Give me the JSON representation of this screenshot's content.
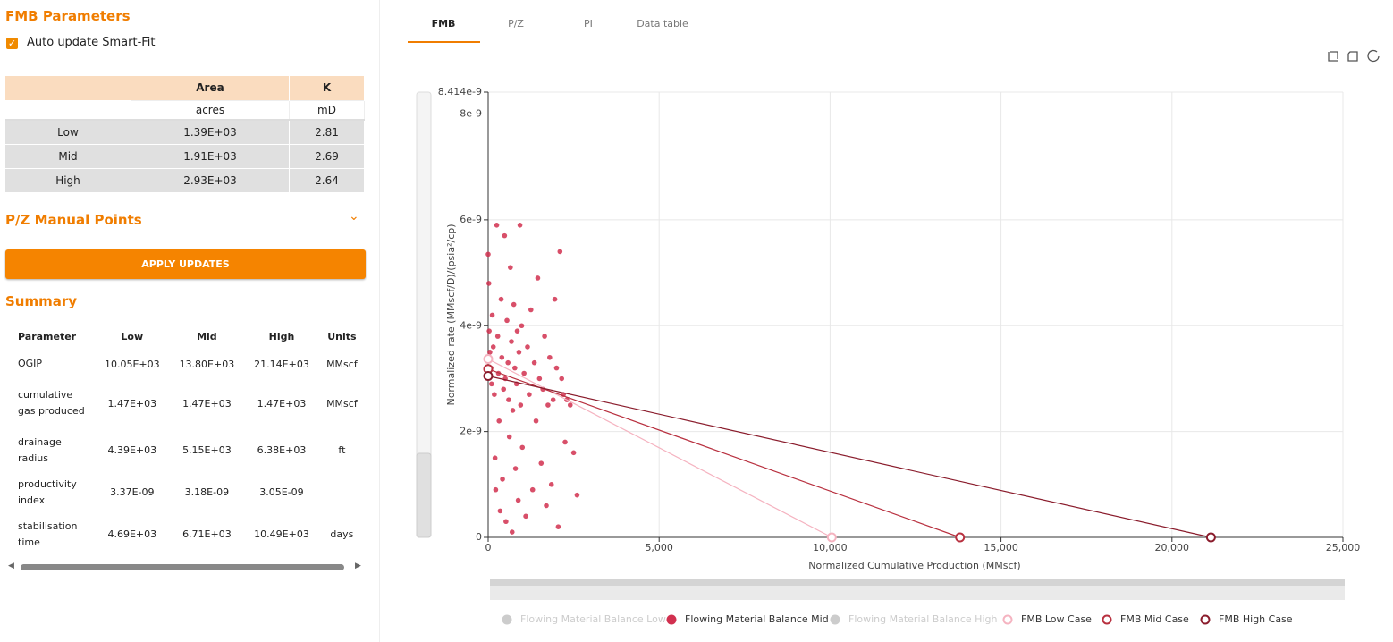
{
  "panel": {
    "title": "FMB Parameters",
    "checkbox_label": "Auto update Smart-Fit",
    "params_table": {
      "columns": [
        "Area",
        "K"
      ],
      "units": [
        "acres",
        "mD"
      ],
      "rows": [
        [
          "Low",
          "1.39E+03",
          "2.81"
        ],
        [
          "Mid",
          "1.91E+03",
          "2.69"
        ],
        [
          "High",
          "2.93E+03",
          "2.64"
        ]
      ]
    },
    "pz_title": "P/Z Manual Points",
    "button": "APPLY UPDATES",
    "summary_title": "Summary",
    "summary_table": {
      "header": [
        "Parameter",
        "Low",
        "Mid",
        "High",
        "Units"
      ],
      "rows": [
        [
          "OGIP",
          "10.05E+03",
          "13.80E+03",
          "21.14E+03",
          "MMscf"
        ],
        [
          "cumulative gas produced",
          "1.47E+03",
          "1.47E+03",
          "1.47E+03",
          "MMscf"
        ],
        [
          "drainage radius",
          "4.39E+03",
          "5.15E+03",
          "6.38E+03",
          "ft"
        ],
        [
          "productivity index",
          "3.37E-09",
          "3.18E-09",
          "3.05E-09",
          null
        ],
        [
          "stabilisation time",
          "4.69E+03",
          "6.71E+03",
          "10.49E+03",
          "days"
        ]
      ]
    }
  },
  "tabs": [
    "FMB",
    "P/Z",
    "PI",
    "Data table"
  ],
  "chart_data": {
    "type": "scatter",
    "x_label": "Normalized Cumulative Production (MMscf)",
    "y_label": "Normalized rate (MMscf/D)/(psia²/cp)",
    "xlim": [
      0,
      25000
    ],
    "xticks": [
      0,
      {
        "value": 5000,
        "label": "5,000"
      },
      {
        "value": 10000,
        "label": "10,000"
      },
      {
        "value": 15000,
        "label": "15,000"
      },
      {
        "value": 20000,
        "label": "20,000"
      },
      {
        "value": 25000,
        "label": "25,000"
      }
    ],
    "ylim": [
      0,
      8.414e-09
    ],
    "yticks": [
      0,
      2e-09,
      4e-09,
      6e-09,
      8e-09,
      8.414e-09
    ],
    "grid": true,
    "series": [
      {
        "name": "Flowing Material Balance Low",
        "type": "scatter",
        "color": "#cccccc",
        "hidden": true,
        "x": [],
        "values": []
      },
      {
        "name": "Flowing Material Balance Mid",
        "type": "scatter",
        "color": "#d1304f",
        "hidden": false,
        "x": [
          0,
          20,
          30,
          50,
          80,
          100,
          120,
          150,
          180,
          200,
          220,
          250,
          280,
          300,
          320,
          350,
          380,
          400,
          420,
          450,
          480,
          500,
          520,
          550,
          580,
          600,
          620,
          650,
          680,
          700,
          720,
          750,
          780,
          800,
          830,
          850,
          880,
          900,
          930,
          950,
          980,
          1000,
          1050,
          1100,
          1150,
          1200,
          1250,
          1300,
          1350,
          1400,
          1450,
          1500,
          1550,
          1600,
          1650,
          1700,
          1750,
          1800,
          1850,
          1900,
          1950,
          2000,
          2050,
          2100,
          2150,
          2200,
          2250,
          2300,
          2400,
          2500,
          2600
        ],
        "values": [
          5.35e-09,
          4.8e-09,
          3.9e-09,
          3.5e-09,
          3.2e-09,
          2.9e-09,
          4.2e-09,
          3.6e-09,
          2.7e-09,
          1.5e-09,
          9e-10,
          5.9e-09,
          3.8e-09,
          3.1e-09,
          2.2e-09,
          5e-10,
          4.5e-09,
          3.4e-09,
          1.1e-09,
          2.8e-09,
          5.7e-09,
          3e-09,
          3e-10,
          4.1e-09,
          3.3e-09,
          2.6e-09,
          1.9e-09,
          5.1e-09,
          3.7e-09,
          1e-10,
          2.4e-09,
          4.4e-09,
          3.2e-09,
          1.3e-09,
          2.9e-09,
          3.9e-09,
          7e-10,
          3.5e-09,
          5.9e-09,
          2.5e-09,
          4e-09,
          1.7e-09,
          3.1e-09,
          4e-10,
          3.6e-09,
          2.7e-09,
          4.3e-09,
          9e-10,
          3.3e-09,
          2.2e-09,
          4.9e-09,
          3e-09,
          1.4e-09,
          2.8e-09,
          3.8e-09,
          6e-10,
          2.5e-09,
          3.4e-09,
          1e-09,
          2.6e-09,
          4.5e-09,
          3.2e-09,
          2e-10,
          5.4e-09,
          3e-09,
          2.7e-09,
          1.8e-09,
          2.6e-09,
          2.5e-09,
          1.6e-09,
          8e-10
        ]
      },
      {
        "name": "Flowing Material Balance High",
        "type": "scatter",
        "color": "#cccccc",
        "hidden": true,
        "x": [],
        "values": []
      },
      {
        "name": "FMB Low Case",
        "type": "line",
        "color": "#f5b3c0",
        "hidden": false,
        "x": [
          0,
          10050
        ],
        "values": [
          3.37e-09,
          0
        ]
      },
      {
        "name": "FMB Mid Case",
        "type": "line",
        "color": "#b8303f",
        "hidden": false,
        "x": [
          0,
          13800
        ],
        "values": [
          3.18e-09,
          0
        ]
      },
      {
        "name": "FMB High Case",
        "type": "line",
        "color": "#8a1c2c",
        "hidden": false,
        "x": [
          0,
          21140
        ],
        "values": [
          3.05e-09,
          0
        ]
      }
    ]
  }
}
